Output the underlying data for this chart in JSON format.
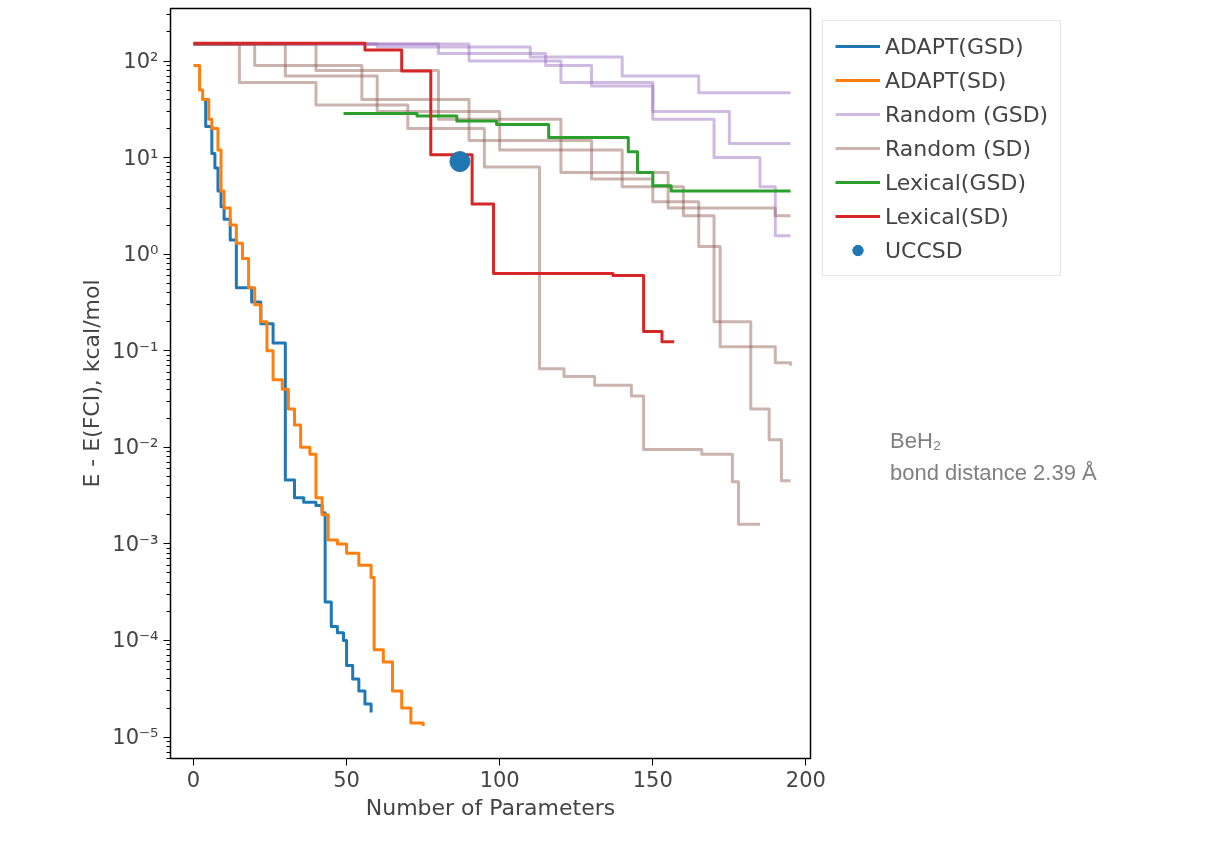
{
  "chart_data": {
    "type": "step",
    "xlabel": "Number of Parameters",
    "ylabel": "E - E(FCI), kcal/mol",
    "log": "y",
    "grid": false,
    "legend": "right",
    "xlim": [
      -7.5,
      201.5
    ],
    "xticks": [
      0,
      50,
      100,
      150,
      200
    ],
    "ylim": [
      6e-06,
      350
    ],
    "yticks": [
      {
        "value": 1e-05,
        "label": "10⁻⁵"
      },
      {
        "value": 0.0001,
        "label": "10⁻⁴"
      },
      {
        "value": 0.001,
        "label": "10⁻³"
      },
      {
        "value": 0.01,
        "label": "10⁻²"
      },
      {
        "value": 0.1,
        "label": "10⁻¹"
      },
      {
        "value": 1,
        "label": "10⁰"
      },
      {
        "value": 10,
        "label": "10¹"
      },
      {
        "value": 100,
        "label": "10²"
      }
    ],
    "annotations": [
      "BeH₂",
      "bond distance 2.39 Å"
    ],
    "series": [
      {
        "name": "ADAPT(GSD)",
        "color": "#1f77b4",
        "x": [
          3,
          4,
          6,
          7,
          8,
          9,
          10,
          12,
          14,
          19,
          22,
          26,
          30,
          33,
          36,
          40,
          42,
          43,
          45,
          47,
          49,
          50,
          52,
          54,
          56,
          58
        ],
        "values": [
          40,
          21,
          11,
          7.8,
          4.5,
          3.1,
          2.3,
          1.4,
          0.45,
          0.32,
          0.19,
          0.12,
          0.0046,
          0.003,
          0.0027,
          0.0025,
          0.0021,
          0.00025,
          0.00014,
          0.00012,
          0.0001,
          5.5e-05,
          4e-05,
          3e-05,
          2.2e-05,
          1.8e-05
        ]
      },
      {
        "name": "ADAPT(SD)",
        "color": "#ff7f0e",
        "x": [
          0,
          2,
          3,
          5,
          6,
          8,
          9,
          10,
          12,
          14,
          16,
          18,
          20,
          22,
          24,
          26,
          29,
          31,
          33,
          35,
          38,
          40,
          42,
          44,
          47,
          50,
          54,
          58,
          59,
          62,
          65,
          68,
          71,
          75
        ],
        "values": [
          90,
          50,
          40,
          25,
          20,
          12,
          4.5,
          3,
          2,
          1.3,
          0.9,
          0.45,
          0.3,
          0.2,
          0.1,
          0.05,
          0.04,
          0.025,
          0.017,
          0.01,
          0.0085,
          0.003,
          0.002,
          0.0011,
          0.001,
          0.0008,
          0.0006,
          0.00045,
          8e-05,
          6e-05,
          3e-05,
          2e-05,
          1.4e-05,
          1.3e-05
        ]
      },
      {
        "name": "Random (GSD)",
        "color": "#9467bd",
        "x": [
          0,
          60,
          110,
          140,
          165,
          195
        ],
        "values": [
          150,
          140,
          110,
          70,
          47,
          47
        ]
      },
      {
        "color": "#9467bd",
        "x": [
          0,
          80,
          115,
          130,
          150,
          175,
          195
        ],
        "values": [
          150,
          120,
          90,
          55,
          30,
          14,
          14
        ]
      },
      {
        "color": "#9467bd",
        "x": [
          0,
          90,
          120,
          150,
          170,
          185,
          190,
          195
        ],
        "values": [
          150,
          100,
          60,
          25,
          10,
          5,
          1.55,
          1.55
        ]
      },
      {
        "name": "Random (SD)",
        "color": "#8c564b",
        "x": [
          0,
          15,
          40,
          70,
          95,
          113,
          121,
          131,
          143,
          147,
          166,
          176,
          178,
          185
        ],
        "values": [
          150,
          60,
          35,
          20,
          8,
          0.065,
          0.054,
          0.044,
          0.034,
          0.0095,
          0.0085,
          0.0044,
          0.0016,
          0.0016
        ]
      },
      {
        "color": "#8c564b",
        "x": [
          0,
          20,
          55,
          90,
          130,
          150,
          165,
          172,
          190,
          195
        ],
        "values": [
          150,
          90,
          40,
          15,
          6,
          3.5,
          1.2,
          0.11,
          0.075,
          0.07
        ]
      },
      {
        "color": "#8c564b",
        "x": [
          0,
          30,
          60,
          100,
          140,
          160,
          170,
          182,
          188,
          192,
          195
        ],
        "values": [
          150,
          70,
          30,
          12,
          5,
          2.5,
          0.2,
          0.025,
          0.012,
          0.0045,
          0.0045
        ]
      },
      {
        "color": "#8c564b",
        "x": [
          0,
          40,
          80,
          120,
          155,
          190,
          195
        ],
        "values": [
          150,
          80,
          25,
          7,
          3,
          2.5,
          2.5
        ]
      },
      {
        "name": "Lexical(GSD)",
        "color": "#2ca02c",
        "x": [
          49,
          73,
          86,
          99,
          116,
          142,
          145,
          150,
          156,
          195
        ],
        "values": [
          28.6,
          27,
          24,
          22,
          16.2,
          11.5,
          7,
          5.1,
          4.5,
          4.5
        ]
      },
      {
        "name": "Lexical(SD)",
        "color": "#d62728",
        "x": [
          0,
          56,
          68,
          77.5,
          91,
          98,
          137,
          147,
          153,
          157
        ],
        "values": [
          153,
          130,
          79,
          10.7,
          3.3,
          0.63,
          0.6,
          0.158,
          0.124,
          0.124
        ]
      },
      {
        "name": "UCCSD",
        "type": "scatter",
        "marker": "circle",
        "color": "#1f77b4",
        "x": [
          87
        ],
        "values": [
          9.1
        ]
      }
    ]
  }
}
